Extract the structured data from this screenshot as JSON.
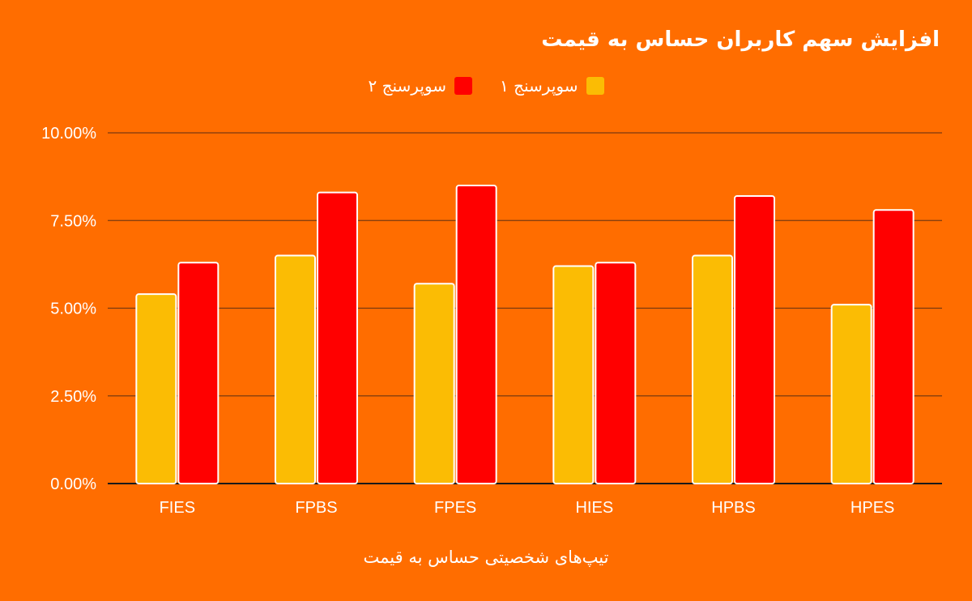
{
  "chart_data": {
    "type": "bar",
    "title": "افزایش سهم کاربران حساس به قیمت",
    "xlabel": "تیپ‌های شخصیتی حساس به قیمت",
    "ylabel": "",
    "categories": [
      "FIES",
      "FPBS",
      "FPES",
      "HIES",
      "HPBS",
      "HPES"
    ],
    "series": [
      {
        "name": "سوپرسنج ۱",
        "color": "#FBBC04",
        "values": [
          5.4,
          6.5,
          5.7,
          6.2,
          6.5,
          5.1
        ]
      },
      {
        "name": "سوپرسنج ۲",
        "color": "#FF0000",
        "values": [
          6.3,
          8.3,
          8.5,
          6.3,
          8.2,
          7.8
        ]
      }
    ],
    "ylim": [
      0,
      10
    ],
    "yticks": [
      "0.00%",
      "2.50%",
      "5.00%",
      "7.50%",
      "10.00%"
    ],
    "ytick_values": [
      0,
      2.5,
      5,
      7.5,
      10
    ],
    "grid": true,
    "legend_position": "top-center"
  }
}
